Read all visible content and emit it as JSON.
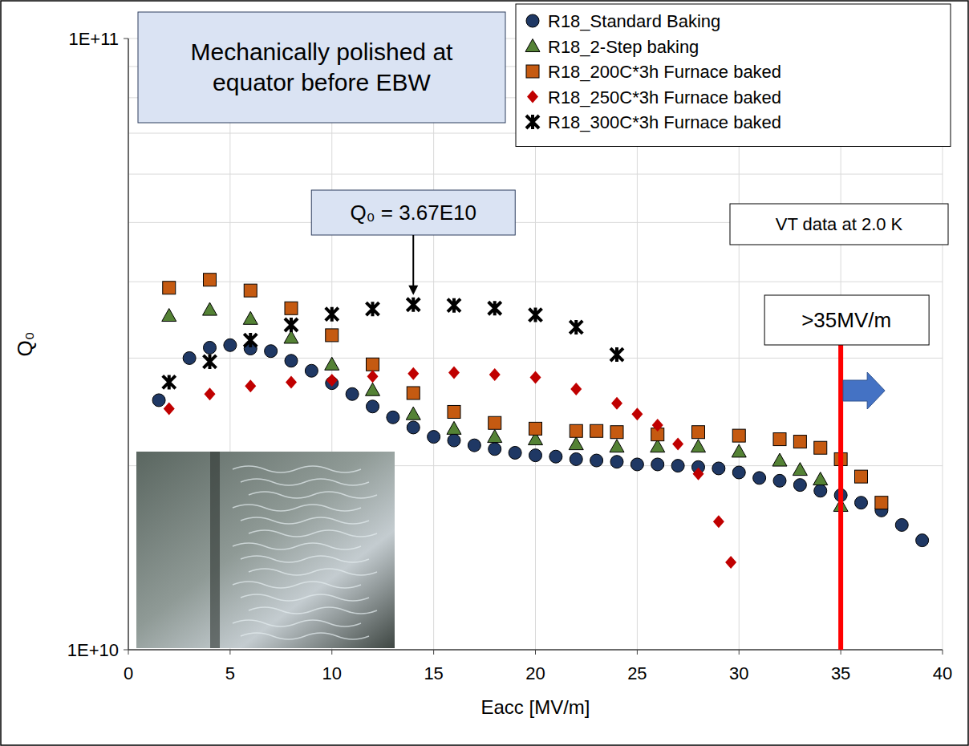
{
  "chart_data": {
    "type": "scatter",
    "x_label": "Eacc [MV/m]",
    "y_label": "Q₀",
    "xlim": [
      0,
      40
    ],
    "xticks": [
      0,
      5,
      10,
      15,
      20,
      25,
      30,
      35,
      40
    ],
    "ylim": [
      10000000000,
      100000000000
    ],
    "yticks": [
      {
        "value": 10000000000,
        "label": "1E+10"
      },
      {
        "value": 100000000000,
        "label": "1E+11"
      }
    ],
    "log": "y",
    "grid": true,
    "legend": "upper right",
    "series": [
      {
        "name": "R18_Standard Baking",
        "color": "#1f3864",
        "marker": "circle",
        "x": [
          1.5,
          3,
          4,
          5,
          6,
          7,
          8,
          9,
          10,
          11,
          12,
          13,
          14,
          15,
          16,
          17,
          18,
          19,
          20,
          21,
          22,
          23,
          24,
          25,
          26,
          27,
          28,
          29,
          30,
          31,
          32,
          33,
          34,
          35,
          36,
          37,
          38,
          39
        ],
        "values": [
          25600000000,
          30000000000,
          31200000000,
          31500000000,
          31100000000,
          30800000000,
          29700000000,
          28600000000,
          27300000000,
          26200000000,
          25000000000,
          24000000000,
          23100000000,
          22300000000,
          22000000000,
          21600000000,
          21300000000,
          21000000000,
          20800000000,
          20700000000,
          20500000000,
          20400000000,
          20300000000,
          20100000000,
          20100000000,
          20000000000,
          19900000000,
          19800000000,
          19500000000,
          19100000000,
          18900000000,
          18600000000,
          18200000000,
          17900000000,
          17400000000,
          16900000000,
          16000000000,
          15100000000
        ]
      },
      {
        "name": "R18_2-Step baking",
        "color": "#548235",
        "marker": "triangle",
        "x": [
          2,
          4,
          6,
          8,
          10,
          12,
          14,
          16,
          18,
          20,
          22,
          24,
          26,
          28,
          30,
          32,
          33,
          34,
          35
        ],
        "values": [
          35200000000,
          36000000000,
          34800000000,
          32400000000,
          29300000000,
          26600000000,
          24300000000,
          23000000000,
          22300000000,
          22100000000,
          21700000000,
          21500000000,
          21500000000,
          21500000000,
          21100000000,
          20400000000,
          19700000000,
          19000000000,
          17200000000
        ]
      },
      {
        "name": "R18_200C*3h Furnace baked",
        "color": "#c55a11",
        "marker": "square",
        "x": [
          2,
          4,
          6,
          8,
          10,
          12,
          14,
          16,
          18,
          20,
          22,
          23,
          24,
          26,
          28,
          30,
          32,
          33,
          34,
          35,
          36,
          37
        ],
        "values": [
          39100000000,
          40300000000,
          38700000000,
          36200000000,
          32700000000,
          29300000000,
          26300000000,
          24500000000,
          23500000000,
          23000000000,
          22800000000,
          22800000000,
          22700000000,
          22500000000,
          22700000000,
          22400000000,
          22100000000,
          21900000000,
          21400000000,
          20500000000,
          19200000000,
          17400000000
        ]
      },
      {
        "name": "R18_250C*3h Furnace baked",
        "color": "#c00000",
        "marker": "diamond",
        "x": [
          2,
          4,
          6,
          8,
          10,
          12,
          14,
          16,
          18,
          20,
          22,
          24,
          25,
          26,
          27,
          28,
          29,
          29.6
        ],
        "values": [
          24800000000,
          26200000000,
          27000000000,
          27400000000,
          27600000000,
          28000000000,
          28300000000,
          28400000000,
          28200000000,
          27900000000,
          26700000000,
          25300000000,
          24300000000,
          23300000000,
          21700000000,
          19400000000,
          16200000000,
          13900000000
        ]
      },
      {
        "name": "R18_300C*3h Furnace baked",
        "color": "#000000",
        "marker": "star",
        "x": [
          2,
          4,
          6,
          8,
          10,
          12,
          14,
          16,
          18,
          20,
          22,
          24
        ],
        "values": [
          27400000000,
          29600000000,
          32100000000,
          34000000000,
          35400000000,
          36100000000,
          36700000000,
          36600000000,
          36200000000,
          35300000000,
          33700000000,
          30400000000
        ]
      }
    ],
    "annotations": [
      {
        "text": "Mechanically polished at equator before EBW"
      },
      {
        "text": "Q₀ = 3.67E10",
        "x": 14,
        "y": 36700000000
      },
      {
        "text": "VT data at 2.0 K"
      },
      {
        "text": ">35MV/m",
        "x": 35
      }
    ]
  }
}
